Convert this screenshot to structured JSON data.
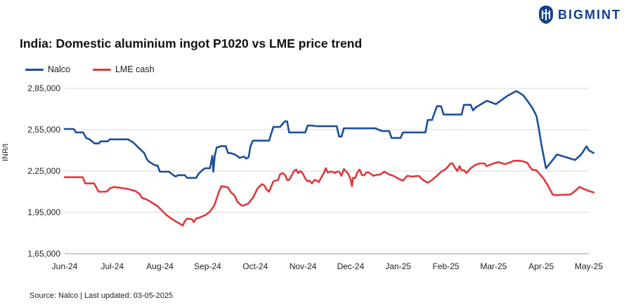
{
  "brand": {
    "name": "BIGMINT",
    "color": "#123f8c"
  },
  "chart_data": {
    "type": "line",
    "title": "India: Domestic aluminium ingot P1020 vs LME price trend",
    "ylabel": "INR/t",
    "xlabel": "",
    "ylim": [
      165000,
      285000
    ],
    "yticks": [
      165000,
      195000,
      225000,
      255000,
      285000
    ],
    "ytick_labels": [
      "1,65,000",
      "1,95,000",
      "2,25,000",
      "2,55,000",
      "2,85,000"
    ],
    "x_labels": [
      "Jun-24",
      "Jul-24",
      "Aug-24",
      "Sep-24",
      "Oct-24",
      "Nov-24",
      "Dec-24",
      "Jan-25",
      "Feb-25",
      "Mar-25",
      "Apr-25",
      "May-25"
    ],
    "x_range": [
      0,
      11
    ],
    "grid": "horizontal",
    "legend_position": "top-left",
    "series": [
      {
        "name": "Nalco",
        "color": "#1b4f9c",
        "points": [
          [
            0,
            255500
          ],
          [
            0.19,
            255500
          ],
          [
            0.24,
            253000
          ],
          [
            0.39,
            253000
          ],
          [
            0.45,
            249000
          ],
          [
            0.52,
            248000
          ],
          [
            0.63,
            245000
          ],
          [
            0.72,
            245000
          ],
          [
            0.75,
            246500
          ],
          [
            0.9,
            246500
          ],
          [
            0.95,
            248000
          ],
          [
            1.14,
            248000
          ],
          [
            1.33,
            248000
          ],
          [
            1.43,
            246000
          ],
          [
            1.55,
            242000
          ],
          [
            1.67,
            238000
          ],
          [
            1.72,
            234000
          ],
          [
            1.76,
            232000
          ],
          [
            1.9,
            229000
          ],
          [
            1.95,
            229000
          ],
          [
            2.0,
            224500
          ],
          [
            2.19,
            224500
          ],
          [
            2.28,
            222000
          ],
          [
            2.33,
            221000
          ],
          [
            2.38,
            222000
          ],
          [
            2.52,
            222000
          ],
          [
            2.57,
            220000
          ],
          [
            2.62,
            220000
          ],
          [
            2.76,
            220000
          ],
          [
            2.81,
            223000
          ],
          [
            2.9,
            226000
          ],
          [
            2.95,
            227000
          ],
          [
            3.05,
            227000
          ],
          [
            3.1,
            236000
          ],
          [
            3.12,
            224500
          ],
          [
            3.15,
            236000
          ],
          [
            3.19,
            242000
          ],
          [
            3.28,
            243000
          ],
          [
            3.38,
            243000
          ],
          [
            3.43,
            238000
          ],
          [
            3.48,
            238000
          ],
          [
            3.57,
            237000
          ],
          [
            3.62,
            236000
          ],
          [
            3.67,
            234500
          ],
          [
            3.76,
            235500
          ],
          [
            3.81,
            234000
          ],
          [
            3.86,
            235000
          ],
          [
            3.9,
            243000
          ],
          [
            3.95,
            247000
          ],
          [
            4.05,
            247000
          ],
          [
            4.29,
            247000
          ],
          [
            4.38,
            257000
          ],
          [
            4.52,
            257000
          ],
          [
            4.57,
            259000
          ],
          [
            4.62,
            261000
          ],
          [
            4.67,
            261000
          ],
          [
            4.71,
            253000
          ],
          [
            4.81,
            253000
          ],
          [
            5.05,
            253000
          ],
          [
            5.1,
            258000
          ],
          [
            5.19,
            258000
          ],
          [
            5.29,
            257500
          ],
          [
            5.62,
            257500
          ],
          [
            5.71,
            257500
          ],
          [
            5.76,
            250000
          ],
          [
            5.81,
            250000
          ],
          [
            5.86,
            256000
          ],
          [
            6.33,
            256000
          ],
          [
            6.52,
            256000
          ],
          [
            6.62,
            254500
          ],
          [
            6.67,
            254000
          ],
          [
            6.81,
            254000
          ],
          [
            6.86,
            249000
          ],
          [
            7.05,
            249000
          ],
          [
            7.1,
            253000
          ],
          [
            7.52,
            253000
          ],
          [
            7.57,
            253000
          ],
          [
            7.62,
            262000
          ],
          [
            7.71,
            262000
          ],
          [
            7.81,
            272000
          ],
          [
            7.9,
            272000
          ],
          [
            7.95,
            266000
          ],
          [
            8.05,
            266000
          ],
          [
            8.33,
            266000
          ],
          [
            8.38,
            273000
          ],
          [
            8.43,
            273000
          ],
          [
            8.52,
            273000
          ],
          [
            8.57,
            269000
          ],
          [
            8.62,
            271000
          ],
          [
            8.86,
            276000
          ],
          [
            9.05,
            273500
          ],
          [
            9.29,
            279500
          ],
          [
            9.48,
            283000
          ],
          [
            9.62,
            280000
          ],
          [
            9.71,
            276000
          ],
          [
            9.81,
            271000
          ],
          [
            9.9,
            265000
          ],
          [
            9.95,
            256000
          ],
          [
            10.0,
            245000
          ],
          [
            10.05,
            236000
          ],
          [
            10.1,
            227000
          ],
          [
            10.24,
            233000
          ],
          [
            10.33,
            237000
          ],
          [
            10.52,
            235000
          ],
          [
            10.71,
            233000
          ],
          [
            10.81,
            236000
          ],
          [
            10.86,
            238000
          ],
          [
            10.95,
            243000
          ],
          [
            11.0,
            240000
          ],
          [
            11.1,
            238000
          ]
        ]
      },
      {
        "name": "LME cash",
        "color": "#e0383a",
        "points": [
          [
            0,
            220500
          ],
          [
            0.38,
            220500
          ],
          [
            0.43,
            216000
          ],
          [
            0.62,
            216000
          ],
          [
            0.71,
            210000
          ],
          [
            0.86,
            210000
          ],
          [
            0.9,
            210500
          ],
          [
            0.95,
            212500
          ],
          [
            1.05,
            213500
          ],
          [
            1.1,
            213000
          ],
          [
            1.14,
            213000
          ],
          [
            1.33,
            212000
          ],
          [
            1.48,
            210500
          ],
          [
            1.57,
            208500
          ],
          [
            1.62,
            205500
          ],
          [
            1.71,
            204500
          ],
          [
            1.81,
            202500
          ],
          [
            1.95,
            199500
          ],
          [
            2.05,
            196000
          ],
          [
            2.14,
            193000
          ],
          [
            2.24,
            190500
          ],
          [
            2.38,
            187500
          ],
          [
            2.48,
            185500
          ],
          [
            2.52,
            188500
          ],
          [
            2.57,
            190500
          ],
          [
            2.67,
            190000
          ],
          [
            2.71,
            188000
          ],
          [
            2.76,
            190500
          ],
          [
            2.81,
            191000
          ],
          [
            2.95,
            193000
          ],
          [
            3.05,
            195500
          ],
          [
            3.14,
            200000
          ],
          [
            3.19,
            205000
          ],
          [
            3.24,
            210000
          ],
          [
            3.29,
            214000
          ],
          [
            3.38,
            213500
          ],
          [
            3.43,
            213000
          ],
          [
            3.48,
            210000
          ],
          [
            3.52,
            208500
          ],
          [
            3.57,
            207000
          ],
          [
            3.62,
            203000
          ],
          [
            3.71,
            200000
          ],
          [
            3.76,
            200000
          ],
          [
            3.86,
            201500
          ],
          [
            3.9,
            203500
          ],
          [
            3.95,
            205500
          ],
          [
            4.0,
            209000
          ],
          [
            4.05,
            212500
          ],
          [
            4.14,
            215500
          ],
          [
            4.19,
            214500
          ],
          [
            4.24,
            211500
          ],
          [
            4.29,
            210000
          ],
          [
            4.33,
            213500
          ],
          [
            4.38,
            217500
          ],
          [
            4.48,
            218500
          ],
          [
            4.52,
            222500
          ],
          [
            4.57,
            223500
          ],
          [
            4.62,
            222500
          ],
          [
            4.67,
            218500
          ],
          [
            4.71,
            218500
          ],
          [
            4.76,
            221500
          ],
          [
            4.81,
            225000
          ],
          [
            4.86,
            226000
          ],
          [
            4.9,
            223500
          ],
          [
            4.95,
            225000
          ],
          [
            5.0,
            223000
          ],
          [
            5.05,
            219500
          ],
          [
            5.1,
            217500
          ],
          [
            5.14,
            218000
          ],
          [
            5.19,
            216000
          ],
          [
            5.24,
            218500
          ],
          [
            5.29,
            218000
          ],
          [
            5.33,
            217000
          ],
          [
            5.38,
            220000
          ],
          [
            5.43,
            223000
          ],
          [
            5.48,
            227000
          ],
          [
            5.52,
            224000
          ],
          [
            5.57,
            224500
          ],
          [
            5.62,
            224500
          ],
          [
            5.67,
            223500
          ],
          [
            5.71,
            224500
          ],
          [
            5.76,
            224500
          ],
          [
            5.81,
            221500
          ],
          [
            5.86,
            226500
          ],
          [
            5.9,
            225000
          ],
          [
            5.95,
            223000
          ],
          [
            6.0,
            219000
          ],
          [
            6.03,
            214000
          ],
          [
            6.05,
            220000
          ],
          [
            6.1,
            220000
          ],
          [
            6.14,
            224000
          ],
          [
            6.19,
            226000
          ],
          [
            6.24,
            222000
          ],
          [
            6.29,
            222000
          ],
          [
            6.33,
            224000
          ],
          [
            6.38,
            224000
          ],
          [
            6.48,
            221500
          ],
          [
            6.52,
            222000
          ],
          [
            6.62,
            222500
          ],
          [
            6.71,
            224500
          ],
          [
            6.81,
            222500
          ],
          [
            6.9,
            221500
          ],
          [
            7.0,
            219500
          ],
          [
            7.1,
            218000
          ],
          [
            7.19,
            221500
          ],
          [
            7.29,
            221000
          ],
          [
            7.43,
            221500
          ],
          [
            7.52,
            218500
          ],
          [
            7.62,
            216500
          ],
          [
            7.71,
            218500
          ],
          [
            7.81,
            221500
          ],
          [
            7.9,
            224500
          ],
          [
            8.0,
            226500
          ],
          [
            8.1,
            230500
          ],
          [
            8.14,
            230500
          ],
          [
            8.19,
            227500
          ],
          [
            8.24,
            225000
          ],
          [
            8.29,
            228500
          ],
          [
            8.33,
            225500
          ],
          [
            8.38,
            225500
          ],
          [
            8.43,
            223500
          ],
          [
            8.52,
            227000
          ],
          [
            8.62,
            229500
          ],
          [
            8.71,
            230500
          ],
          [
            8.81,
            230500
          ],
          [
            8.86,
            228500
          ],
          [
            9.0,
            230500
          ],
          [
            9.1,
            231500
          ],
          [
            9.24,
            230000
          ],
          [
            9.33,
            231000
          ],
          [
            9.43,
            232500
          ],
          [
            9.52,
            232500
          ],
          [
            9.62,
            232000
          ],
          [
            9.71,
            231000
          ],
          [
            9.76,
            228000
          ],
          [
            9.81,
            226000
          ],
          [
            9.9,
            225500
          ],
          [
            9.95,
            223500
          ],
          [
            10.05,
            219500
          ],
          [
            10.14,
            214500
          ],
          [
            10.24,
            208000
          ],
          [
            10.29,
            207500
          ],
          [
            10.62,
            208000
          ],
          [
            10.71,
            210500
          ],
          [
            10.81,
            213500
          ],
          [
            10.86,
            212500
          ],
          [
            11.0,
            210500
          ],
          [
            11.1,
            209500
          ]
        ]
      }
    ]
  },
  "source_text": "Source: Nalco | Last updated: 03-05-2025"
}
